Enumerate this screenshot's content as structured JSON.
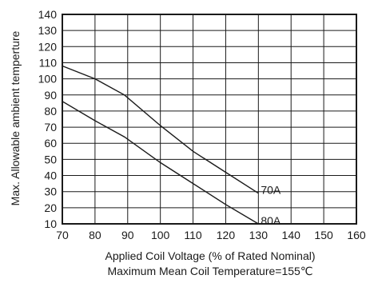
{
  "chart_data": {
    "type": "line",
    "xlabel": "Applied Coil Voltage (% of Rated Nominal)",
    "subtitle": "Maximum Mean Coil Temperature=155℃",
    "ylabel": "Max. Allowable ambient temperture",
    "xlim": [
      70,
      160
    ],
    "ylim": [
      10,
      140
    ],
    "x_ticks": [
      "70",
      "80",
      "90",
      "100",
      "110",
      "120",
      "130",
      "140",
      "150",
      "160"
    ],
    "y_ticks": [
      "10",
      "20",
      "30",
      "40",
      "50",
      "60",
      "70",
      "80",
      "90",
      "100",
      "110",
      "120",
      "130",
      "140"
    ],
    "grid": true,
    "series": [
      {
        "name": "70A",
        "x": [
          70,
          80,
          89,
          100,
          110,
          120,
          130
        ],
        "y": [
          108,
          100,
          90,
          71,
          55,
          42,
          29
        ]
      },
      {
        "name": "80A",
        "x": [
          70,
          80,
          89,
          100,
          110,
          120,
          130
        ],
        "y": [
          86,
          74,
          64,
          48,
          35,
          22,
          10
        ]
      }
    ]
  }
}
